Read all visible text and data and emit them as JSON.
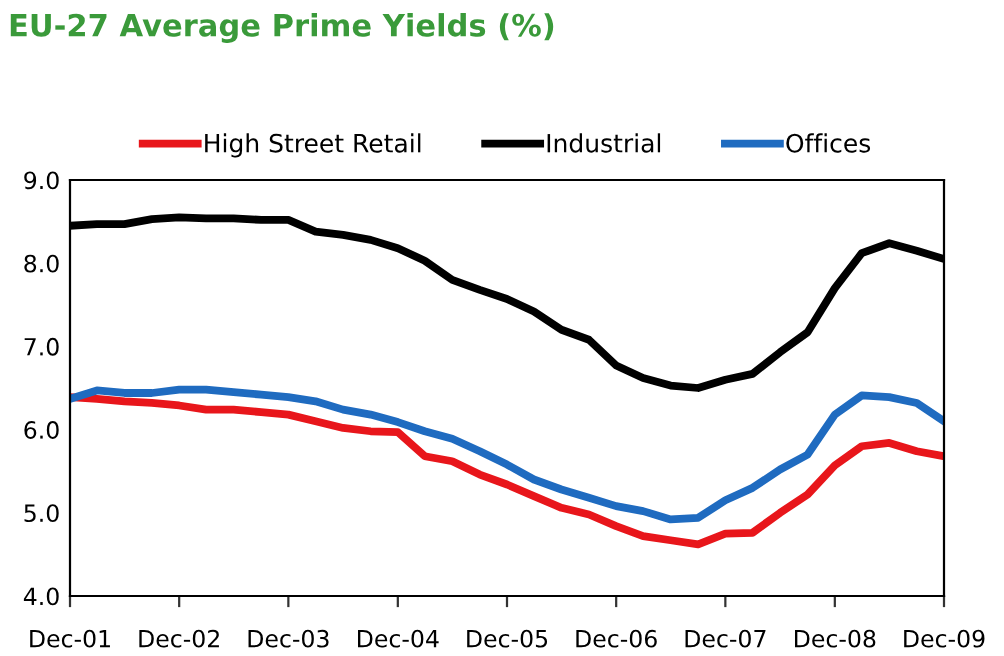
{
  "chart_data": {
    "type": "line",
    "title": "EU-27 Average Prime Yields (%)",
    "x": [
      "2001-12",
      "2002-03",
      "2002-06",
      "2002-09",
      "2002-12",
      "2003-03",
      "2003-06",
      "2003-09",
      "2003-12",
      "2004-03",
      "2004-06",
      "2004-09",
      "2004-12",
      "2005-03",
      "2005-06",
      "2005-09",
      "2005-12",
      "2006-03",
      "2006-06",
      "2006-09",
      "2006-12",
      "2007-03",
      "2007-06",
      "2007-09",
      "2007-12",
      "2008-03",
      "2008-06",
      "2008-09",
      "2008-12",
      "2009-03",
      "2009-06",
      "2009-09",
      "2009-12"
    ],
    "series": [
      {
        "name": "High Street Retail",
        "color": "#e8161b",
        "values": [
          6.39,
          6.37,
          6.34,
          6.32,
          6.29,
          6.24,
          6.24,
          6.21,
          6.18,
          6.1,
          6.02,
          5.98,
          5.97,
          5.68,
          5.62,
          5.46,
          5.34,
          5.2,
          5.06,
          4.98,
          4.84,
          4.72,
          4.67,
          4.62,
          4.75,
          4.76,
          5.0,
          5.22,
          5.57,
          5.8,
          5.84,
          5.74,
          5.68
        ]
      },
      {
        "name": "Industrial",
        "color": "#000000",
        "values": [
          8.45,
          8.47,
          8.47,
          8.53,
          8.55,
          8.54,
          8.54,
          8.52,
          8.52,
          8.38,
          8.34,
          8.28,
          8.18,
          8.03,
          7.8,
          7.68,
          7.57,
          7.42,
          7.2,
          7.08,
          6.77,
          6.62,
          6.53,
          6.5,
          6.6,
          6.67,
          6.93,
          7.17,
          7.7,
          8.12,
          8.24,
          8.15,
          8.05
        ]
      },
      {
        "name": "Offices",
        "color": "#1f6bc0",
        "values": [
          6.37,
          6.47,
          6.44,
          6.44,
          6.48,
          6.48,
          6.45,
          6.42,
          6.39,
          6.34,
          6.24,
          6.18,
          6.09,
          5.98,
          5.89,
          5.74,
          5.58,
          5.4,
          5.28,
          5.18,
          5.08,
          5.02,
          4.92,
          4.94,
          5.15,
          5.3,
          5.52,
          5.7,
          6.18,
          6.41,
          6.39,
          6.32,
          6.1
        ]
      }
    ],
    "xlim": [
      "2001-12",
      "2009-12"
    ],
    "xticks": [
      {
        "value": "2001-12",
        "label": "Dec-01"
      },
      {
        "value": "2002-12",
        "label": "Dec-02"
      },
      {
        "value": "2003-12",
        "label": "Dec-03"
      },
      {
        "value": "2004-12",
        "label": "Dec-04"
      },
      {
        "value": "2005-12",
        "label": "Dec-05"
      },
      {
        "value": "2006-12",
        "label": "Dec-06"
      },
      {
        "value": "2007-12",
        "label": "Dec-07"
      },
      {
        "value": "2008-12",
        "label": "Dec-08"
      },
      {
        "value": "2009-12",
        "label": "Dec-09"
      }
    ],
    "ylim": [
      4,
      9
    ],
    "yticks": [
      {
        "value": 4,
        "label": "4.0"
      },
      {
        "value": 5,
        "label": "5.0"
      },
      {
        "value": 6,
        "label": "6.0"
      },
      {
        "value": 7,
        "label": "7.0"
      },
      {
        "value": 8,
        "label": "8.0"
      },
      {
        "value": 9,
        "label": "9.0"
      }
    ],
    "grid": false,
    "legend": "top",
    "marker": "none",
    "line_style": "solid"
  }
}
